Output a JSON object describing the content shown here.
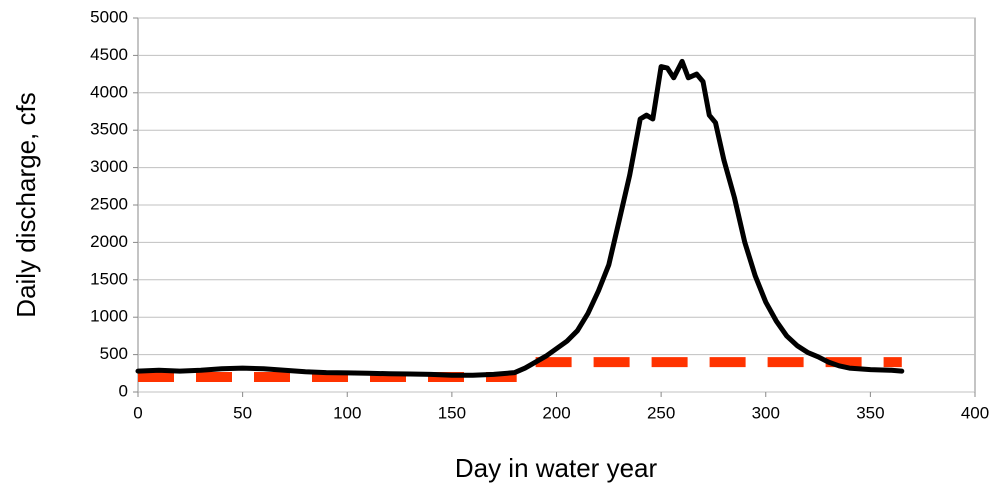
{
  "chart_data": {
    "type": "line",
    "x_label": "Day in water year",
    "y_label": "Daily discharge, cfs",
    "xlim": [
      0,
      400
    ],
    "xticks": [
      0,
      50,
      100,
      150,
      200,
      250,
      300,
      350,
      400
    ],
    "ylim": [
      0,
      5000
    ],
    "yticks": [
      0,
      500,
      1000,
      1500,
      2000,
      2500,
      3000,
      3500,
      4000,
      4500,
      5000
    ],
    "grid": true,
    "series": [
      {
        "color": "#000000",
        "dashed": false,
        "x": [
          0,
          10,
          20,
          30,
          40,
          50,
          60,
          70,
          80,
          90,
          100,
          110,
          120,
          130,
          140,
          150,
          160,
          170,
          180,
          185,
          190,
          195,
          200,
          205,
          210,
          215,
          220,
          225,
          230,
          235,
          240,
          243,
          246,
          250,
          253,
          256,
          260,
          263,
          267,
          270,
          273,
          276,
          280,
          285,
          290,
          295,
          300,
          305,
          310,
          315,
          320,
          325,
          330,
          335,
          340,
          350,
          360,
          365
        ],
        "values": [
          280,
          290,
          280,
          290,
          310,
          320,
          310,
          290,
          270,
          260,
          255,
          250,
          245,
          240,
          235,
          225,
          225,
          235,
          260,
          320,
          400,
          480,
          580,
          680,
          820,
          1050,
          1350,
          1700,
          2300,
          2900,
          3650,
          3700,
          3650,
          4350,
          4330,
          4200,
          4420,
          4200,
          4250,
          4150,
          3700,
          3600,
          3100,
          2600,
          2000,
          1550,
          1200,
          950,
          750,
          620,
          530,
          470,
          400,
          350,
          320,
          300,
          290,
          280
        ]
      },
      {
        "color": "#ff3300",
        "dashed": true,
        "x": [
          0,
          181,
          183,
          190,
          365
        ],
        "values": [
          200,
          200,
          null,
          400,
          400
        ]
      }
    ]
  }
}
